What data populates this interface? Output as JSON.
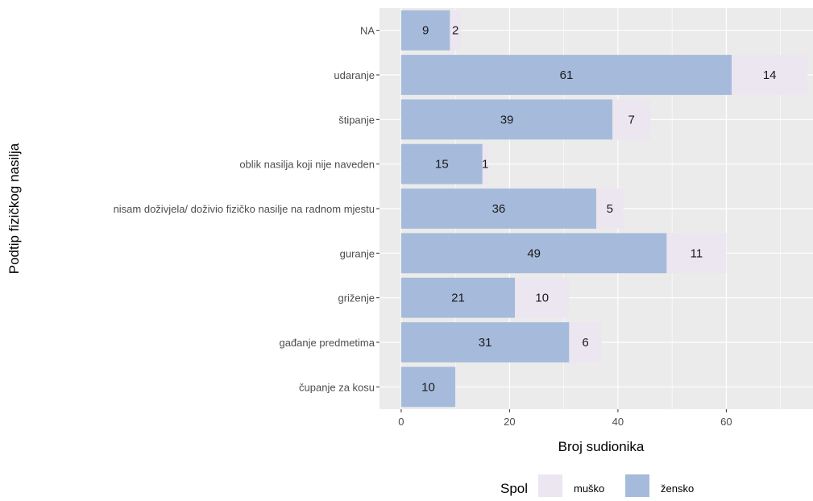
{
  "chart_data": {
    "type": "bar",
    "orientation": "horizontal",
    "stacked": true,
    "categories": [
      "NA",
      "udaranje",
      "štipanje",
      "oblik nasilja koji nije naveden",
      "nisam doživjela/ doživio fizičko nasilje na radnom mjestu",
      "guranje",
      "griženje",
      "gađanje predmetima",
      "čupanje za kosu"
    ],
    "series": [
      {
        "name": "žensko",
        "color": "#a6bbdb",
        "values": [
          9,
          61,
          39,
          15,
          36,
          49,
          21,
          31,
          10
        ]
      },
      {
        "name": "muško",
        "color": "#ece6f1",
        "values": [
          2,
          14,
          7,
          1,
          5,
          11,
          10,
          6,
          0
        ]
      }
    ],
    "xlabel": "Broj sudionika",
    "ylabel": "Podtip fizičkog nasilja",
    "xlim": [
      -4,
      76
    ],
    "xticks": [
      0,
      20,
      40,
      60
    ],
    "grid": true,
    "legend": {
      "title": "Spol",
      "position": "bottom",
      "entries": [
        {
          "label": "muško",
          "color": "#ece6f1"
        },
        {
          "label": "žensko",
          "color": "#a6bbdb"
        }
      ]
    }
  }
}
